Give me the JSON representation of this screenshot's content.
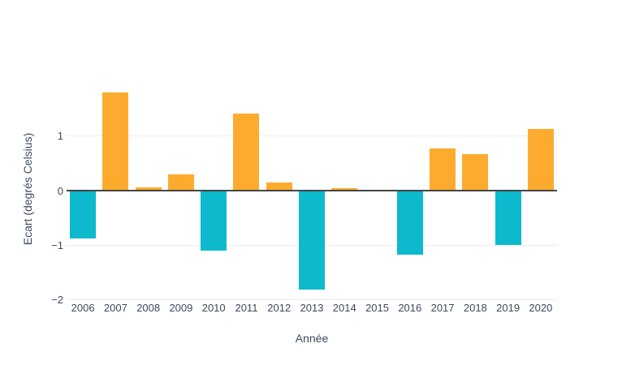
{
  "page": {
    "background": "#ffffff"
  },
  "chart_data": {
    "type": "bar",
    "title": "",
    "xlabel": "Année",
    "ylabel": "Ecart (degrés Celsius)",
    "categories": [
      "2006",
      "2007",
      "2008",
      "2009",
      "2010",
      "2011",
      "2012",
      "2013",
      "2014",
      "2015",
      "2016",
      "2017",
      "2018",
      "2019",
      "2020"
    ],
    "values": [
      -0.88,
      1.8,
      0.05,
      0.29,
      -1.11,
      1.41,
      0.14,
      -1.83,
      0.03,
      0.0,
      -1.19,
      0.76,
      0.66,
      -1.0,
      1.12
    ],
    "ylim": [
      -2.05,
      1.95
    ],
    "ytick_labels": [
      "1",
      "0",
      "−1",
      "−2"
    ],
    "ytick_values": [
      1,
      0,
      -1,
      -2
    ],
    "grid": true,
    "legend": false,
    "layout_hint": "positive bars orange, negative bars cyan, dark zero line, light horizontal gridlines",
    "colors": {
      "positive_bar": "#fdab2f",
      "negative_bar": "#0db9cd",
      "gridline": "#e9ecef",
      "zeroline": "#444444",
      "text": "#3b4a5c"
    }
  }
}
